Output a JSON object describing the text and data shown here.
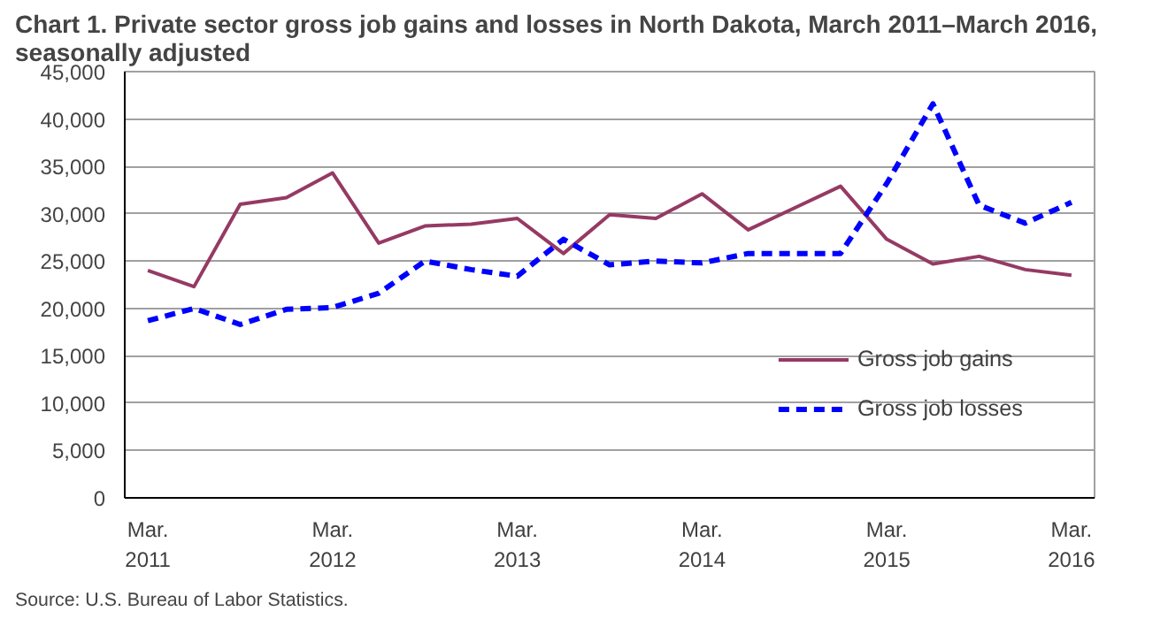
{
  "chart_data": {
    "type": "line",
    "title": "Chart 1. Private sector gross  job gains and losses  in North Dakota, March 2011–March 2016, seasonally adjusted",
    "categories": [
      "Mar.\n2011",
      null,
      null,
      null,
      "Mar.\n2012",
      null,
      null,
      null,
      "Mar.\n2013",
      null,
      null,
      null,
      "Mar.\n2014",
      null,
      null,
      null,
      "Mar.\n2015",
      null,
      null,
      null,
      "Mar.\n2016"
    ],
    "series": [
      {
        "name": "Gross job gains",
        "color": "#953a64",
        "line_style": "solid",
        "values": [
          24000,
          22300,
          31000,
          31700,
          34300,
          26900,
          28700,
          28900,
          29500,
          25800,
          29900,
          29500,
          32100,
          28300,
          30600,
          32900,
          27300,
          24700,
          25500,
          24100,
          23500
        ]
      },
      {
        "name": "Gross job losses",
        "color": "#0000ff",
        "line_style": "dashed",
        "values": [
          18700,
          20000,
          18300,
          19900,
          20100,
          21600,
          25000,
          24100,
          23400,
          27300,
          24600,
          25000,
          24800,
          25800,
          25800,
          25800,
          33200,
          41600,
          30900,
          29000,
          31200
        ]
      }
    ],
    "ylim": [
      0,
      45000
    ],
    "yticks": [
      {
        "value": 0,
        "label": "0"
      },
      {
        "value": 5000,
        "label": "5,000"
      },
      {
        "value": 10000,
        "label": "10,000"
      },
      {
        "value": 15000,
        "label": "15,000"
      },
      {
        "value": 20000,
        "label": "20,000"
      },
      {
        "value": 25000,
        "label": "25,000"
      },
      {
        "value": 30000,
        "label": "30,000"
      },
      {
        "value": 35000,
        "label": "35,000"
      },
      {
        "value": 40000,
        "label": "40,000"
      },
      {
        "value": 45000,
        "label": "45,000"
      }
    ],
    "grid": "y",
    "legend": "bottom right",
    "marker": "none",
    "annotations": [
      "Source: U.S. Bureau of Labor Statistics."
    ]
  }
}
